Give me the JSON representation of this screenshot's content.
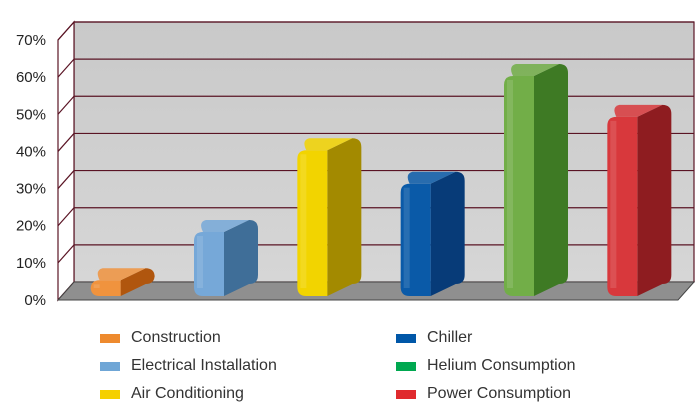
{
  "chart_data": {
    "type": "bar",
    "title": "",
    "xlabel": "",
    "ylabel": "",
    "categories": [
      "Construction",
      "Electrical Installation",
      "Air Conditioning",
      "Chiller",
      "Helium Consumption",
      "Power Consumption"
    ],
    "values": [
      8,
      21,
      43,
      34,
      63,
      52
    ],
    "unit": "%",
    "ylim": [
      0,
      70
    ],
    "yticks": [
      "0%",
      "10%",
      "20%",
      "30%",
      "40%",
      "50%",
      "60%",
      "70%"
    ],
    "grid": true,
    "legend_position": "bottom",
    "colors": [
      "#ee8a2e",
      "#6fa6d6",
      "#f5d000",
      "#0057a8",
      "#00a850",
      "#e02a2e"
    ],
    "bar_front_colors": [
      "#f0933e",
      "#76a8d8",
      "#f2d400",
      "#0a5aa8",
      "#72ae48",
      "#d8383c"
    ],
    "bar_side_colors": [
      "#b0560e",
      "#3f6e98",
      "#a38a00",
      "#073b78",
      "#3e7a24",
      "#8e1c20"
    ]
  }
}
